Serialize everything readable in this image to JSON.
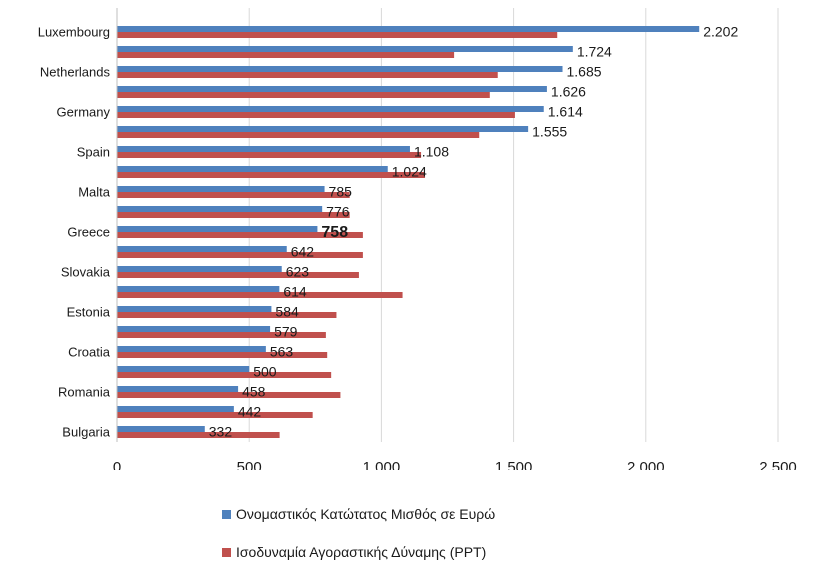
{
  "chart_data": {
    "type": "bar",
    "orientation": "horizontal",
    "categories": [
      "Luxembourg",
      "",
      "Netherlands",
      "",
      "Germany",
      "",
      "Spain",
      "",
      "Malta",
      "",
      "Greece",
      "",
      "Slovakia",
      "",
      "Estonia",
      "",
      "Croatia",
      "",
      "Romania",
      "",
      "Bulgaria"
    ],
    "series": [
      {
        "name": "Ονομαστικός Κατώτατος Μισθός σε Ευρώ",
        "color": "#4F81BD",
        "values": [
          2202,
          1724,
          1685,
          1626,
          1614,
          1555,
          1108,
          1024,
          785,
          776,
          758,
          642,
          623,
          614,
          584,
          579,
          563,
          500,
          458,
          442,
          332
        ],
        "labels": [
          "2.202",
          "1.724",
          "1.685",
          "1.626",
          "1.614",
          "1.555",
          "1.108",
          "1.024",
          "785",
          "776",
          "758",
          "642",
          "623",
          "614",
          "584",
          "579",
          "563",
          "500",
          "458",
          "442",
          "332"
        ]
      },
      {
        "name": "Ισοδυναμία Αγοραστικής Δύναμης (PPT)",
        "color": "#C0504D",
        "values": [
          1665,
          1275,
          1440,
          1410,
          1505,
          1370,
          1150,
          1165,
          880,
          880,
          930,
          930,
          915,
          1080,
          830,
          790,
          795,
          810,
          845,
          740,
          615
        ]
      }
    ],
    "highlight_label_index": 10,
    "xlim": [
      0,
      2500
    ],
    "x_ticks": [
      0,
      500,
      1000,
      1500,
      2000,
      2500
    ],
    "x_tick_labels": [
      "0",
      "500",
      "1.000",
      "1.500",
      "2.000",
      "2.500"
    ],
    "grid": "vertical",
    "legend_position": "bottom"
  }
}
